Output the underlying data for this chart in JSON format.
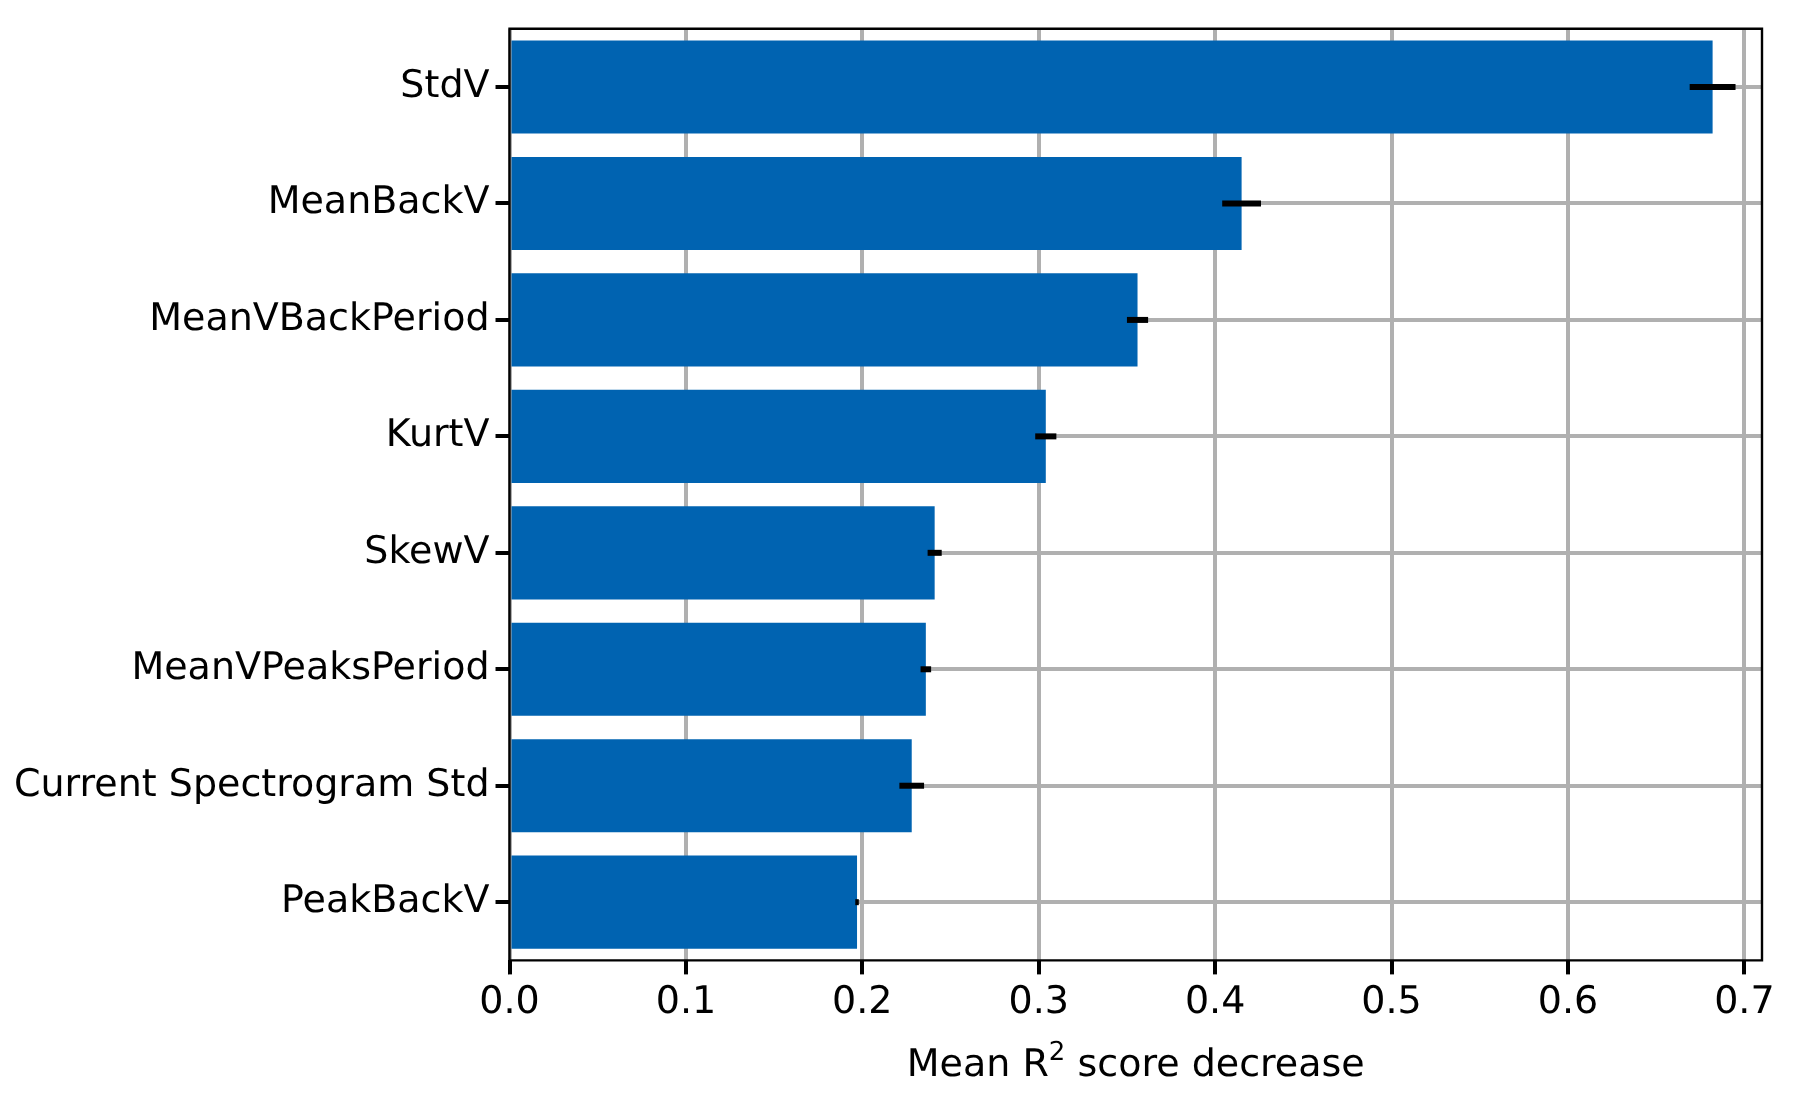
{
  "chart_data": {
    "type": "bar",
    "orientation": "horizontal",
    "categories": [
      "StdV",
      "MeanBackV",
      "MeanVBackPeriod",
      "KurtV",
      "SkewV",
      "MeanVPeaksPeriod",
      "Current Spectrogram Std",
      "PeakBackV"
    ],
    "values": [
      0.682,
      0.415,
      0.356,
      0.304,
      0.241,
      0.236,
      0.228,
      0.197
    ],
    "errors": [
      0.013,
      0.011,
      0.006,
      0.006,
      0.004,
      0.003,
      0.007,
      0.001
    ],
    "color": "#0063b1",
    "xlabel": "Mean R$^{2}$ score decrease",
    "xlim": [
      0,
      0.71
    ],
    "xticks": [
      {
        "value": 0,
        "label": "0.0"
      },
      0.1,
      0.2,
      0.3,
      0.4,
      0.5,
      0.6,
      0.7
    ],
    "grid": true,
    "legend": false
  }
}
